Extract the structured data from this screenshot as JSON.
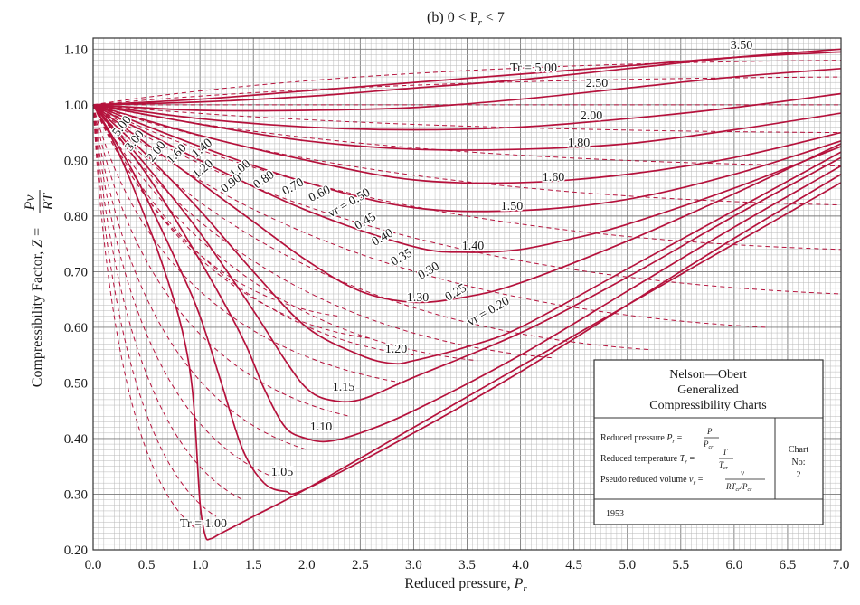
{
  "chart_data": {
    "type": "line",
    "title": "(b) 0 < P_r < 7",
    "xlabel": "Reduced pressure, P_r",
    "ylabel": "Compressibility Factor, Z = Pv/RT",
    "xlim": [
      0,
      7
    ],
    "ylim": [
      0.2,
      1.12
    ],
    "xticks": [
      "0.0",
      "0.5",
      "1.0",
      "1.5",
      "2.0",
      "2.5",
      "3.0",
      "3.5",
      "4.0",
      "4.5",
      "5.0",
      "5.5",
      "6.0",
      "6.5",
      "7.0"
    ],
    "yticks": [
      "0.20",
      "0.30",
      "0.40",
      "0.50",
      "0.60",
      "0.70",
      "0.80",
      "0.90",
      "1.00",
      "1.10"
    ],
    "grid": true,
    "series_style": {
      "solid": "constant reduced temperature T_r",
      "dashed": "constant pseudo reduced volume v_r"
    },
    "isotherms": [
      {
        "label": "T_r = 1.00",
        "x": [
          0,
          0.2,
          0.4,
          0.6,
          0.8,
          0.9,
          0.95,
          1.0,
          1.05,
          1.1,
          1.2,
          1.5,
          2.0,
          3.0,
          4.0,
          5.0,
          6.0,
          7.0
        ],
        "y": [
          1.0,
          0.93,
          0.84,
          0.74,
          0.62,
          0.53,
          0.44,
          0.285,
          0.225,
          0.22,
          0.23,
          0.26,
          0.31,
          0.42,
          0.53,
          0.64,
          0.75,
          0.86
        ]
      },
      {
        "label": "1.05",
        "x": [
          0,
          0.4,
          0.8,
          1.0,
          1.2,
          1.4,
          1.6,
          1.8,
          2.0,
          3.0,
          4.0,
          5.0,
          6.0,
          7.0
        ],
        "y": [
          1.0,
          0.87,
          0.71,
          0.62,
          0.5,
          0.38,
          0.32,
          0.305,
          0.31,
          0.41,
          0.52,
          0.64,
          0.76,
          0.875
        ]
      },
      {
        "label": "1.10",
        "x": [
          0,
          0.5,
          1.0,
          1.4,
          1.6,
          1.8,
          2.0,
          2.2,
          2.5,
          3.0,
          4.0,
          5.0,
          6.0,
          7.0
        ],
        "y": [
          1.0,
          0.875,
          0.72,
          0.58,
          0.49,
          0.42,
          0.4,
          0.395,
          0.41,
          0.45,
          0.55,
          0.665,
          0.78,
          0.89
        ]
      },
      {
        "label": "1.15",
        "x": [
          0,
          0.5,
          1.0,
          1.5,
          1.8,
          2.0,
          2.2,
          2.5,
          3.0,
          4.0,
          5.0,
          6.0,
          7.0
        ],
        "y": [
          1.0,
          0.89,
          0.77,
          0.63,
          0.54,
          0.49,
          0.47,
          0.47,
          0.51,
          0.59,
          0.69,
          0.8,
          0.905
        ]
      },
      {
        "label": "1.20",
        "x": [
          0,
          0.5,
          1.0,
          1.5,
          2.0,
          2.5,
          2.8,
          3.0,
          3.5,
          4.0,
          5.0,
          6.0,
          7.0
        ],
        "y": [
          1.0,
          0.91,
          0.81,
          0.7,
          0.6,
          0.55,
          0.535,
          0.54,
          0.565,
          0.6,
          0.705,
          0.81,
          0.915
        ]
      },
      {
        "label": "1.30",
        "x": [
          0,
          0.5,
          1.0,
          1.5,
          2.0,
          2.5,
          3.0,
          3.5,
          4.0,
          5.0,
          6.0,
          7.0
        ],
        "y": [
          1.0,
          0.93,
          0.86,
          0.79,
          0.72,
          0.665,
          0.645,
          0.655,
          0.68,
          0.755,
          0.84,
          0.93
        ]
      },
      {
        "label": "1.40",
        "x": [
          0,
          1.0,
          2.0,
          3.0,
          3.5,
          4.0,
          4.5,
          5.0,
          6.0,
          7.0
        ],
        "y": [
          1.0,
          0.9,
          0.81,
          0.745,
          0.735,
          0.74,
          0.76,
          0.785,
          0.85,
          0.925
        ]
      },
      {
        "label": "1.50",
        "x": [
          0,
          1.0,
          2.0,
          3.0,
          4.0,
          5.0,
          6.0,
          7.0
        ],
        "y": [
          1.0,
          0.925,
          0.86,
          0.815,
          0.81,
          0.83,
          0.875,
          0.935
        ]
      },
      {
        "label": "1.60",
        "x": [
          0,
          1.0,
          2.0,
          3.0,
          4.0,
          5.0,
          6.0,
          7.0
        ],
        "y": [
          1.0,
          0.945,
          0.9,
          0.865,
          0.86,
          0.875,
          0.905,
          0.95
        ]
      },
      {
        "label": "1.80",
        "x": [
          0,
          1.0,
          2.0,
          3.0,
          4.0,
          5.0,
          6.0,
          7.0
        ],
        "y": [
          1.0,
          0.965,
          0.935,
          0.92,
          0.92,
          0.93,
          0.955,
          0.985
        ]
      },
      {
        "label": "2.00",
        "x": [
          0,
          1.0,
          2.0,
          3.0,
          4.0,
          5.0,
          6.0,
          7.0
        ],
        "y": [
          1.0,
          0.975,
          0.96,
          0.955,
          0.96,
          0.975,
          0.995,
          1.02
        ]
      },
      {
        "label": "2.50",
        "x": [
          0,
          1.0,
          2.0,
          3.0,
          4.0,
          5.0,
          6.0,
          7.0
        ],
        "y": [
          1.0,
          0.99,
          0.99,
          0.995,
          1.01,
          1.03,
          1.05,
          1.065
        ]
      },
      {
        "label": "3.50",
        "x": [
          0,
          1.0,
          2.0,
          3.0,
          4.0,
          5.0,
          6.0,
          7.0
        ],
        "y": [
          1.0,
          1.005,
          1.015,
          1.03,
          1.045,
          1.065,
          1.085,
          1.1
        ]
      },
      {
        "label": "T_r = 5.00",
        "x": [
          0,
          1.0,
          2.0,
          3.0,
          4.0,
          5.0,
          6.0,
          7.0
        ],
        "y": [
          1.0,
          1.01,
          1.025,
          1.04,
          1.055,
          1.07,
          1.085,
          1.095
        ]
      }
    ],
    "low_pressure_isotherm_labels": [
      "5.00",
      "3.00",
      "2.00",
      "1.60",
      "1.40",
      "1.20",
      "1.00",
      "0.90",
      "0.80",
      "0.70",
      "0.60"
    ],
    "reduced_volume_labels": [
      "v_r = 0.50",
      "0.45",
      "0.40",
      "0.35",
      "0.30",
      "0.25",
      "v_r = 0.20"
    ],
    "info_box": {
      "title_lines": [
        "Nelson—Obert",
        "Generalized",
        "Compressibility Charts"
      ],
      "line_pressure": "Reduced pressure P_r = P / P_cr",
      "line_temperature": "Reduced temperature T_r = T / T_cr",
      "line_volume": "Pseudo reduced volume v_r = v / (RT_cr / P_cr)",
      "chart_no_label": "Chart No:",
      "chart_no": "2",
      "year": "1953"
    },
    "colors": {
      "curve": "#b5123c",
      "grid": "#8a8a8a",
      "frame": "#333333"
    }
  }
}
